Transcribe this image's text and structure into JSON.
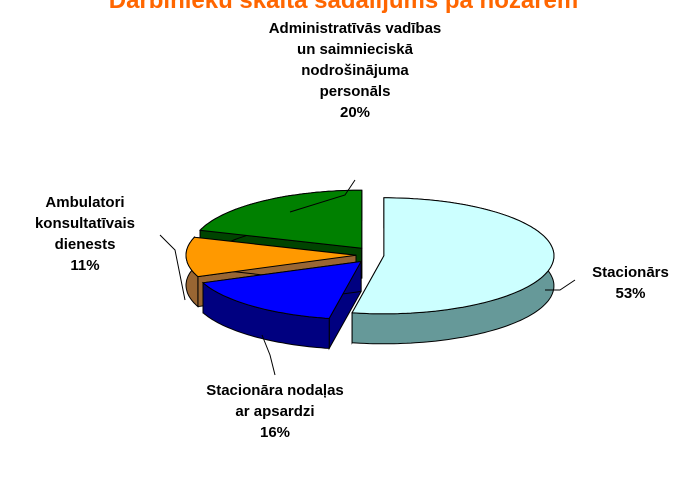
{
  "chart_data": {
    "type": "pie3d",
    "title": "Darbinieku skaita sadalījums pa nozarēm",
    "categories": [
      "Stacionārs",
      "Stacionāra nodaļas ar apsardzi",
      "Ambulatori konsultatīvais dienests",
      "Administratīvās vadības un saimnieciskā nodrošinājuma personāls"
    ],
    "values": [
      53,
      16,
      11,
      20
    ],
    "value_labels": [
      "53%",
      "16%",
      "11%",
      "20%"
    ],
    "colors": [
      "#ccffff",
      "#0000ff",
      "#ff9900",
      "#008000"
    ],
    "side_colors": [
      "#669999",
      "#000080",
      "#996633",
      "#004400"
    ]
  }
}
